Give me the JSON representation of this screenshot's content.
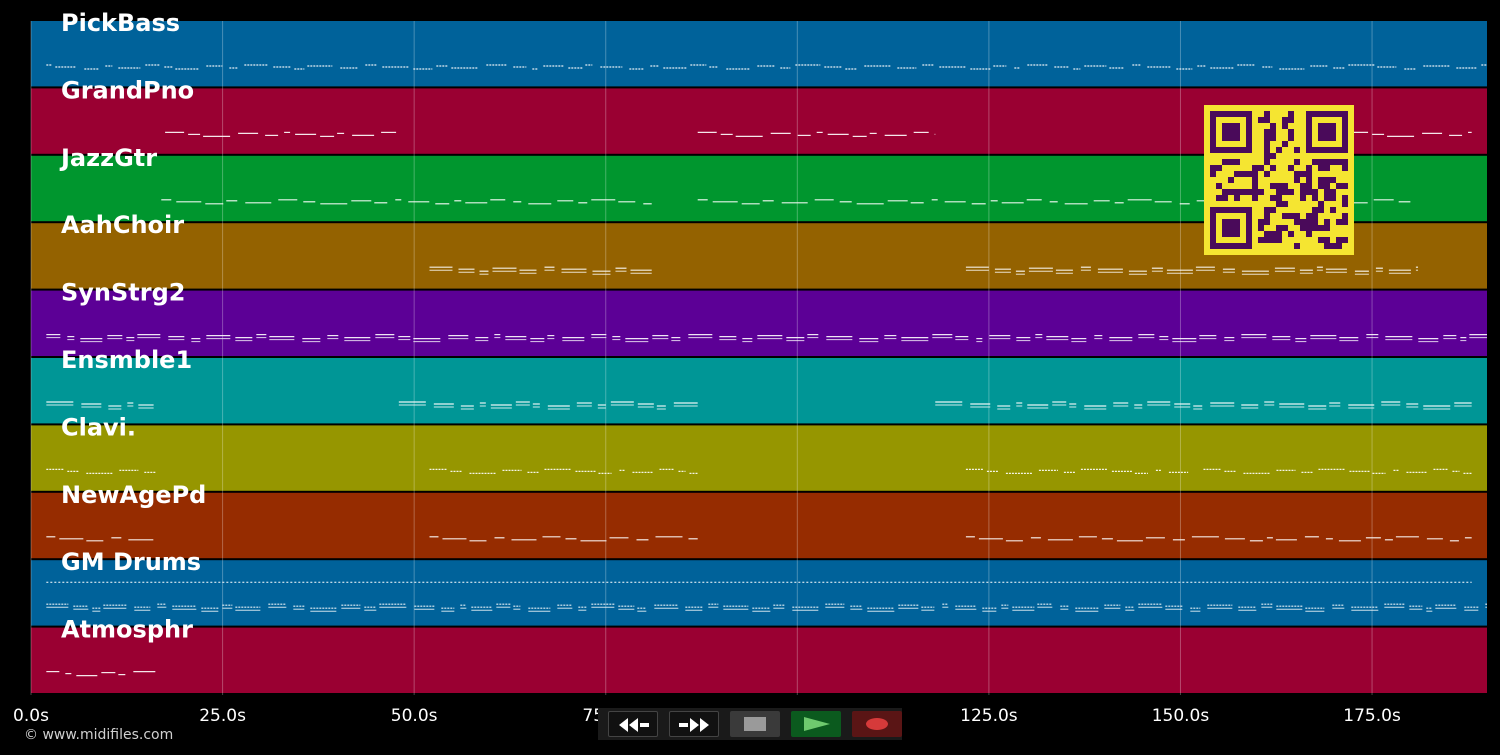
{
  "tracks": [
    {
      "name": "PickBass",
      "color": "#00629a"
    },
    {
      "name": "GrandPno",
      "color": "#9a0032"
    },
    {
      "name": "JazzGtr",
      "color": "#00962e"
    },
    {
      "name": "AahChoir",
      "color": "#946200"
    },
    {
      "name": "SynStrg2",
      "color": "#5c0096"
    },
    {
      "name": "Ensmble1",
      "color": "#009696"
    },
    {
      "name": "Clavi.",
      "color": "#969600"
    },
    {
      "name": "NewAgePd",
      "color": "#962c00"
    },
    {
      "name": "GM Drums",
      "color": "#00629a"
    },
    {
      "name": "Atmosphr",
      "color": "#9a0032"
    }
  ],
  "timeline": {
    "max_seconds": 190,
    "ticks": [
      {
        "value": 0,
        "label": "0.0s"
      },
      {
        "value": 25,
        "label": "25.0s"
      },
      {
        "value": 50,
        "label": "50.0s"
      },
      {
        "value": 75,
        "label": "75.0s"
      },
      {
        "value": 100,
        "label": "100.0s"
      },
      {
        "value": 125,
        "label": "125.0s"
      },
      {
        "value": 150,
        "label": "150.0s"
      },
      {
        "value": 175,
        "label": "175.0s"
      }
    ]
  },
  "note_regions": [
    [
      [
        2,
        190
      ]
    ],
    [
      [
        17.5,
        48
      ],
      [
        87,
        118
      ],
      [
        172,
        188
      ]
    ],
    [
      [
        17,
        81
      ],
      [
        87,
        180
      ]
    ],
    [
      [
        52,
        81
      ],
      [
        122,
        181
      ]
    ],
    [
      [
        2,
        190
      ]
    ],
    [
      [
        2,
        16
      ],
      [
        48,
        87
      ],
      [
        118,
        188
      ]
    ],
    [
      [
        2,
        17
      ],
      [
        52,
        87
      ],
      [
        122,
        151
      ],
      [
        153,
        188
      ]
    ],
    [
      [
        2,
        16
      ],
      [
        52,
        87
      ],
      [
        122,
        188
      ]
    ],
    [
      [
        2,
        190
      ]
    ],
    [
      [
        2,
        17
      ]
    ]
  ],
  "copyright": "© www.midifiles.com",
  "transport": {
    "rewind_icon": "rewind-icon",
    "ffwd_icon": "fast-forward-icon",
    "stop_icon": "stop-icon",
    "play_icon": "play-icon",
    "record_icon": "record-icon",
    "play_color": "#6ec96e",
    "record_color": "#d63a3a"
  },
  "qr_code": {
    "icon": "qr-code-icon",
    "fg": "#4a0a5a",
    "bg": "#f5e531"
  }
}
